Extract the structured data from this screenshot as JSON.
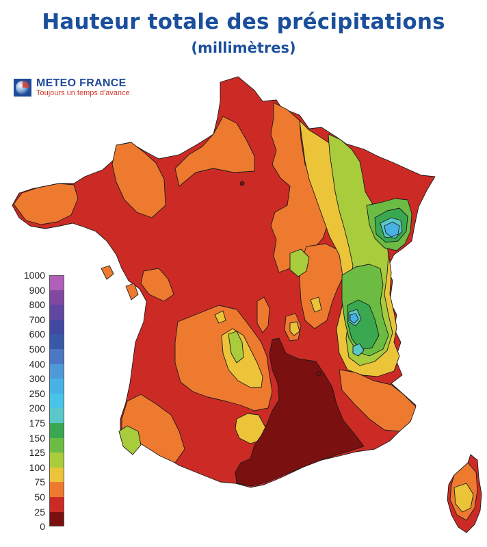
{
  "title": "Hauteur totale des précipitations",
  "subtitle": "(millimètres)",
  "logo": {
    "name": "METEO FRANCE",
    "slogan": "Toujours un temps d'avance",
    "icon": "meteo-france-logo-icon"
  },
  "legend": {
    "labels": [
      "1000",
      "900",
      "800",
      "700",
      "600",
      "500",
      "400",
      "300",
      "250",
      "200",
      "175",
      "150",
      "125",
      "100",
      "75",
      "50",
      "25",
      "0"
    ],
    "classes": [
      {
        "min": 900,
        "max": 1000,
        "color": "#b060b8"
      },
      {
        "min": 800,
        "max": 900,
        "color": "#8048a0"
      },
      {
        "min": 700,
        "max": 800,
        "color": "#6048a0"
      },
      {
        "min": 600,
        "max": 700,
        "color": "#4048a0"
      },
      {
        "min": 500,
        "max": 600,
        "color": "#3858a8"
      },
      {
        "min": 400,
        "max": 500,
        "color": "#4a78c4"
      },
      {
        "min": 300,
        "max": 400,
        "color": "#4e9ad8"
      },
      {
        "min": 250,
        "max": 300,
        "color": "#48b2e6"
      },
      {
        "min": 200,
        "max": 250,
        "color": "#48c4e6"
      },
      {
        "min": 175,
        "max": 200,
        "color": "#5ac8c8"
      },
      {
        "min": 150,
        "max": 175,
        "color": "#3aa850"
      },
      {
        "min": 125,
        "max": 150,
        "color": "#6cbc44"
      },
      {
        "min": 100,
        "max": 125,
        "color": "#a8cc3c"
      },
      {
        "min": 75,
        "max": 100,
        "color": "#ecc43a"
      },
      {
        "min": 50,
        "max": 75,
        "color": "#ee7a30"
      },
      {
        "min": 25,
        "max": 50,
        "color": "#cc2b25"
      },
      {
        "min": 0,
        "max": 25,
        "color": "#7a1010"
      }
    ]
  }
}
